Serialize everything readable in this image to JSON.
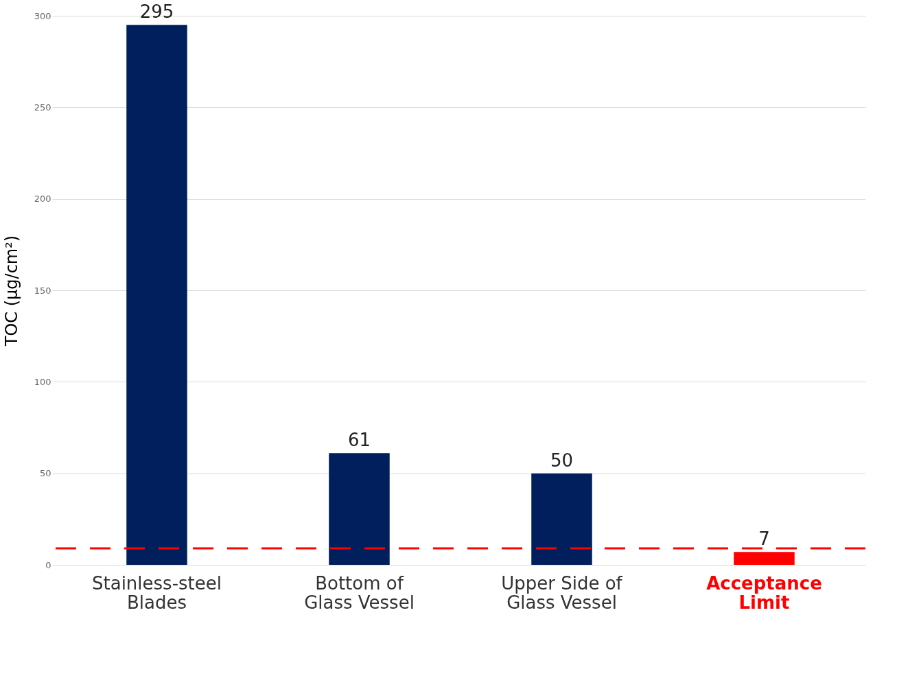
{
  "chart_data": {
    "type": "bar",
    "ylabel": "TOC (µg/cm²)",
    "categories": [
      "Stainless-steel\nBlades",
      "Bottom of\nGlass Vessel",
      "Upper Side of\nGlass Vessel",
      "Acceptance\nLimit"
    ],
    "values": [
      295,
      61,
      50,
      7
    ],
    "colors": [
      "#001f5c",
      "#001f5c",
      "#001f5c",
      "#ff0000"
    ],
    "data_labels": true,
    "ylim": [
      0,
      300
    ],
    "yticks": [
      0,
      50,
      100,
      150,
      200,
      250,
      300
    ],
    "grid": "y",
    "ref_lines": [
      {
        "axis": "y",
        "value": 9,
        "color": "#ff0000",
        "line_style": "dashed"
      }
    ]
  }
}
